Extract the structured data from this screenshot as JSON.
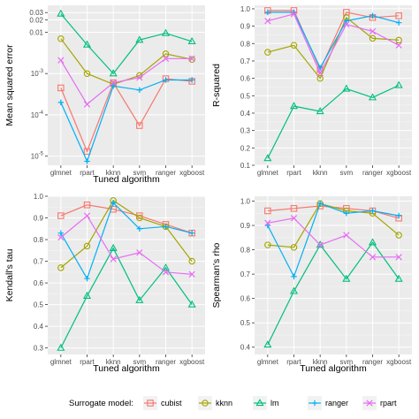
{
  "legend": {
    "title": "Surrogate model:"
  },
  "colors": {
    "cubist": "#F8766D",
    "kknn": "#A3A500",
    "lm": "#00BF7D",
    "ranger": "#00B0F6",
    "rpart": "#E76BF3",
    "panel_bg": "#EBEBEB",
    "grid_major": "#FFFFFF"
  },
  "chart_data": [
    {
      "type": "line",
      "id": "mse",
      "categories": [
        "glmnet",
        "rpart",
        "kknn",
        "svm",
        "ranger",
        "xgboost"
      ],
      "xlabel": "Tuned algorithm",
      "ylabel": "Mean squared error",
      "yscale": "log",
      "ylim": [
        6e-06,
        0.045
      ],
      "yticks": [
        {
          "v": 1e-05,
          "label": "10",
          "sup": "-5"
        },
        {
          "v": 0.0001,
          "label": "10",
          "sup": "-4"
        },
        {
          "v": 0.001,
          "label": "10",
          "sup": "-3"
        },
        {
          "v": 0.01,
          "label": "0.01",
          "sup": ""
        },
        {
          "v": 0.02,
          "label": "0.02",
          "sup": ""
        },
        {
          "v": 0.03,
          "label": "0.03",
          "sup": ""
        }
      ],
      "series": [
        {
          "name": "cubist",
          "values": [
            0.00045,
            1.3e-05,
            0.0006,
            5.5e-05,
            0.00075,
            0.00065
          ]
        },
        {
          "name": "kknn",
          "values": [
            0.007,
            0.001,
            0.00055,
            0.0009,
            0.003,
            0.0022
          ]
        },
        {
          "name": "lm",
          "values": [
            0.028,
            0.005,
            0.001,
            0.0065,
            0.0095,
            0.006
          ]
        },
        {
          "name": "ranger",
          "values": [
            0.0002,
            7.5e-06,
            0.0005,
            0.0004,
            0.0007,
            0.0007
          ]
        },
        {
          "name": "rpart",
          "values": [
            0.0021,
            0.00018,
            0.0006,
            0.0008,
            0.0023,
            0.0023
          ]
        }
      ]
    },
    {
      "type": "line",
      "id": "rsquared",
      "categories": [
        "glmnet",
        "rpart",
        "kknn",
        "svm",
        "ranger",
        "xgboost"
      ],
      "xlabel": "",
      "ylabel": "R-squared",
      "yscale": "linear",
      "ylim": [
        0.1,
        1.02
      ],
      "yticks": [
        {
          "v": 0.1,
          "label": "0.1"
        },
        {
          "v": 0.2,
          "label": "0.2"
        },
        {
          "v": 0.3,
          "label": "0.3"
        },
        {
          "v": 0.4,
          "label": "0.4"
        },
        {
          "v": 0.5,
          "label": "0.5"
        },
        {
          "v": 0.6,
          "label": "0.6"
        },
        {
          "v": 0.7,
          "label": "0.7"
        },
        {
          "v": 0.8,
          "label": "0.8"
        },
        {
          "v": 0.9,
          "label": "0.9"
        },
        {
          "v": 1.0,
          "label": "1.0"
        }
      ],
      "series": [
        {
          "name": "cubist",
          "values": [
            0.99,
            0.99,
            0.65,
            0.98,
            0.95,
            0.96
          ]
        },
        {
          "name": "kknn",
          "values": [
            0.75,
            0.79,
            0.6,
            0.95,
            0.83,
            0.82
          ]
        },
        {
          "name": "lm",
          "values": [
            0.14,
            0.44,
            0.41,
            0.54,
            0.49,
            0.56
          ]
        },
        {
          "name": "ranger",
          "values": [
            0.98,
            0.98,
            0.66,
            0.93,
            0.96,
            0.92
          ]
        },
        {
          "name": "rpart",
          "values": [
            0.93,
            0.97,
            0.63,
            0.91,
            0.87,
            0.79
          ]
        }
      ]
    },
    {
      "type": "line",
      "id": "kendall",
      "categories": [
        "glmnet",
        "rpart",
        "kknn",
        "svm",
        "ranger",
        "xgboost"
      ],
      "xlabel": "Tuned algorithm",
      "ylabel": "Kendall's tau",
      "yscale": "linear",
      "ylim": [
        0.27,
        1.0
      ],
      "yticks": [
        {
          "v": 0.3,
          "label": "0.3"
        },
        {
          "v": 0.4,
          "label": "0.4"
        },
        {
          "v": 0.5,
          "label": "0.5"
        },
        {
          "v": 0.6,
          "label": "0.6"
        },
        {
          "v": 0.7,
          "label": "0.7"
        },
        {
          "v": 0.8,
          "label": "0.8"
        },
        {
          "v": 0.9,
          "label": "0.9"
        },
        {
          "v": 1.0,
          "label": "1.0"
        }
      ],
      "series": [
        {
          "name": "cubist",
          "values": [
            0.91,
            0.96,
            0.94,
            0.91,
            0.87,
            0.83
          ]
        },
        {
          "name": "kknn",
          "values": [
            0.67,
            0.77,
            0.98,
            0.9,
            0.86,
            0.7
          ]
        },
        {
          "name": "lm",
          "values": [
            0.3,
            0.54,
            0.76,
            0.52,
            0.67,
            0.5
          ]
        },
        {
          "name": "ranger",
          "values": [
            0.83,
            0.62,
            0.97,
            0.85,
            0.86,
            0.83
          ]
        },
        {
          "name": "rpart",
          "values": [
            0.81,
            0.91,
            0.71,
            0.74,
            0.65,
            0.64
          ]
        }
      ]
    },
    {
      "type": "line",
      "id": "spearman",
      "categories": [
        "glmnet",
        "rpart",
        "kknn",
        "svm",
        "ranger",
        "xgboost"
      ],
      "xlabel": "Tuned algorithm",
      "ylabel": "Spearman's rho",
      "yscale": "linear",
      "ylim": [
        0.37,
        1.02
      ],
      "yticks": [
        {
          "v": 0.4,
          "label": "0.4"
        },
        {
          "v": 0.5,
          "label": "0.5"
        },
        {
          "v": 0.6,
          "label": "0.6"
        },
        {
          "v": 0.7,
          "label": "0.7"
        },
        {
          "v": 0.8,
          "label": "0.8"
        },
        {
          "v": 0.9,
          "label": "0.9"
        },
        {
          "v": 1.0,
          "label": "1.0"
        }
      ],
      "series": [
        {
          "name": "cubist",
          "values": [
            0.96,
            0.97,
            0.98,
            0.97,
            0.96,
            0.93
          ]
        },
        {
          "name": "kknn",
          "values": [
            0.82,
            0.81,
            0.99,
            0.96,
            0.95,
            0.86
          ]
        },
        {
          "name": "lm",
          "values": [
            0.41,
            0.63,
            0.82,
            0.68,
            0.83,
            0.68
          ]
        },
        {
          "name": "ranger",
          "values": [
            0.9,
            0.69,
            0.99,
            0.95,
            0.96,
            0.94
          ]
        },
        {
          "name": "rpart",
          "values": [
            0.91,
            0.93,
            0.82,
            0.86,
            0.77,
            0.77
          ]
        }
      ]
    }
  ]
}
